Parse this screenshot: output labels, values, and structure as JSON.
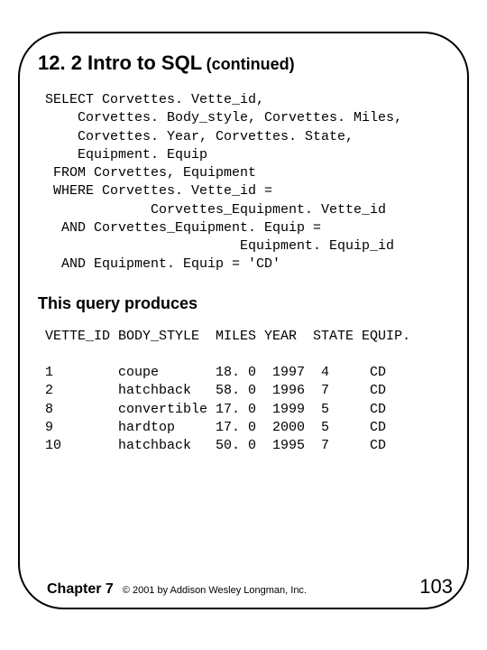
{
  "title_main": "12. 2 Intro to SQL",
  "title_sub": "(continued)",
  "sql_code": "SELECT Corvettes. Vette_id,\n    Corvettes. Body_style, Corvettes. Miles,\n    Corvettes. Year, Corvettes. State,\n    Equipment. Equip\n FROM Corvettes, Equipment\n WHERE Corvettes. Vette_id =\n             Corvettes_Equipment. Vette_id\n  AND Corvettes_Equipment. Equip =\n                        Equipment. Equip_id\n  AND Equipment. Equip = 'CD'",
  "subheading": "This query produces",
  "columns_text": "VETTE_ID BODY_STYLE  MILES YEAR  STATE EQUIP.",
  "rows_text": [
    "1        coupe       18. 0  1997  4     CD",
    "2        hatchback   58. 0  1996  7     CD",
    "8        convertible 17. 0  1999  5     CD",
    "9        hardtop     17. 0  2000  5     CD",
    "10       hatchback   50. 0  1995  7     CD"
  ],
  "chapter": "Chapter 7",
  "copyright": "© 2001 by Addison Wesley Longman, Inc.",
  "page_number": "103"
}
